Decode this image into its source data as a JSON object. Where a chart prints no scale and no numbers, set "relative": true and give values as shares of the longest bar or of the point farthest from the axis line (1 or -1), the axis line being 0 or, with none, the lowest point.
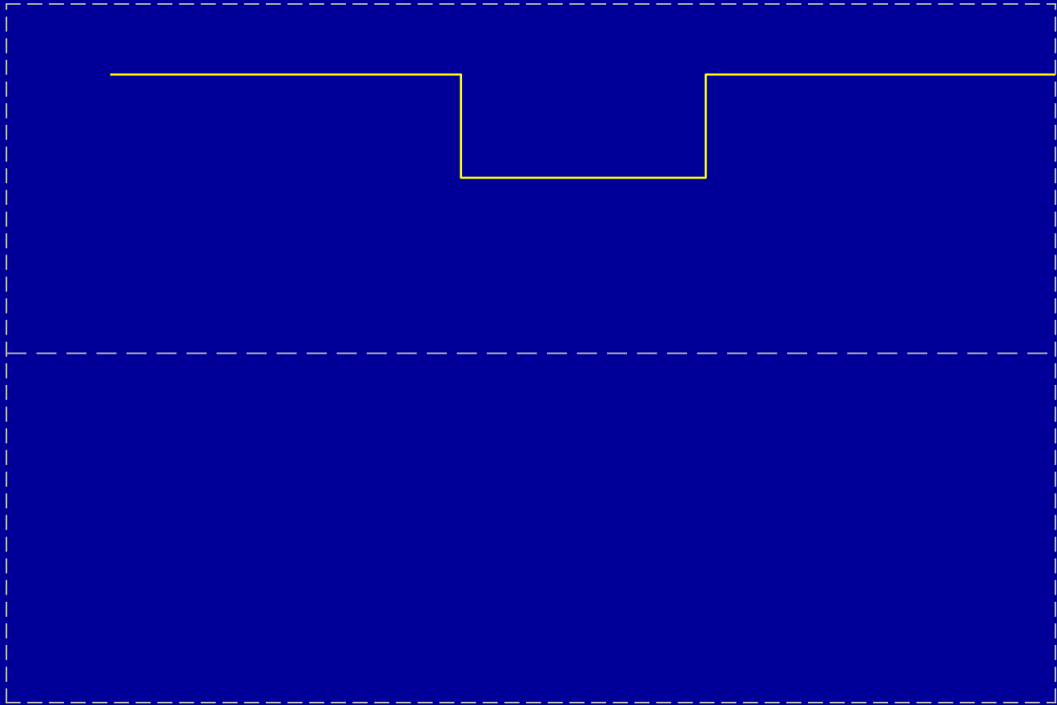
{
  "chart_data": {
    "type": "step",
    "relative": true,
    "categories": [
      null,
      null,
      null,
      null,
      null,
      null,
      null,
      null,
      null,
      null,
      null,
      null,
      null,
      null,
      null,
      null,
      null,
      null,
      null,
      null,
      null,
      null,
      null,
      null,
      null,
      null,
      null,
      null,
      null,
      null,
      null
    ],
    "series": [
      {
        "color": "#ffff00",
        "values": [
          null,
          null,
          null,
          1,
          1,
          1,
          1,
          1,
          1,
          1,
          1,
          1,
          1,
          0.63,
          0.63,
          0.63,
          0.63,
          0.63,
          0.63,
          0.63,
          1,
          1,
          1,
          1,
          1,
          1,
          1,
          1,
          1,
          1,
          1
        ]
      }
    ],
    "line_style": "solid",
    "marker": "none"
  }
}
